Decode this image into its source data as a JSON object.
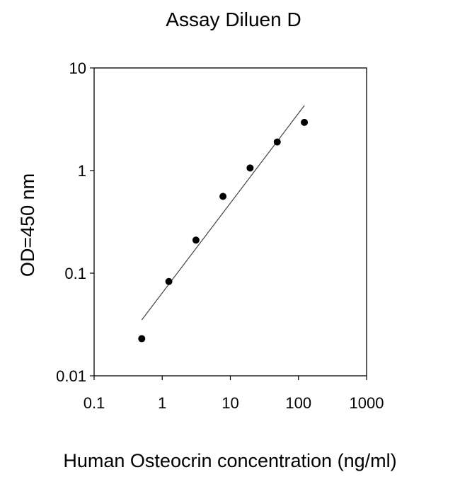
{
  "chart_data": {
    "type": "scatter",
    "title": "Assay Diluen D",
    "xlabel": "Human Osteocrin concentration (ng/ml)",
    "ylabel": "OD=450 nm",
    "xscale": "log",
    "yscale": "log",
    "xlim": [
      0.1,
      1000
    ],
    "ylim": [
      0.01,
      10
    ],
    "xticks": [
      "0.1",
      "1",
      "10",
      "100",
      "1000"
    ],
    "yticks": [
      "0.01",
      "0.1",
      "1",
      "10"
    ],
    "grid": false,
    "legend": "none",
    "series": [
      {
        "points": [
          {
            "x": 0.5,
            "y": 0.023
          },
          {
            "x": 1.25,
            "y": 0.083
          },
          {
            "x": 3.125,
            "y": 0.21
          },
          {
            "x": 7.8,
            "y": 0.56
          },
          {
            "x": 19.5,
            "y": 1.06
          },
          {
            "x": 48.8,
            "y": 1.9
          },
          {
            "x": 122,
            "y": 2.95
          }
        ]
      }
    ],
    "fit_line": {
      "type": "power",
      "x_range": [
        0.5,
        122
      ],
      "y_range": [
        0.035,
        4.3
      ]
    },
    "colors": {
      "points": "#000000",
      "fit": "#444444",
      "axes": "#000000"
    }
  }
}
